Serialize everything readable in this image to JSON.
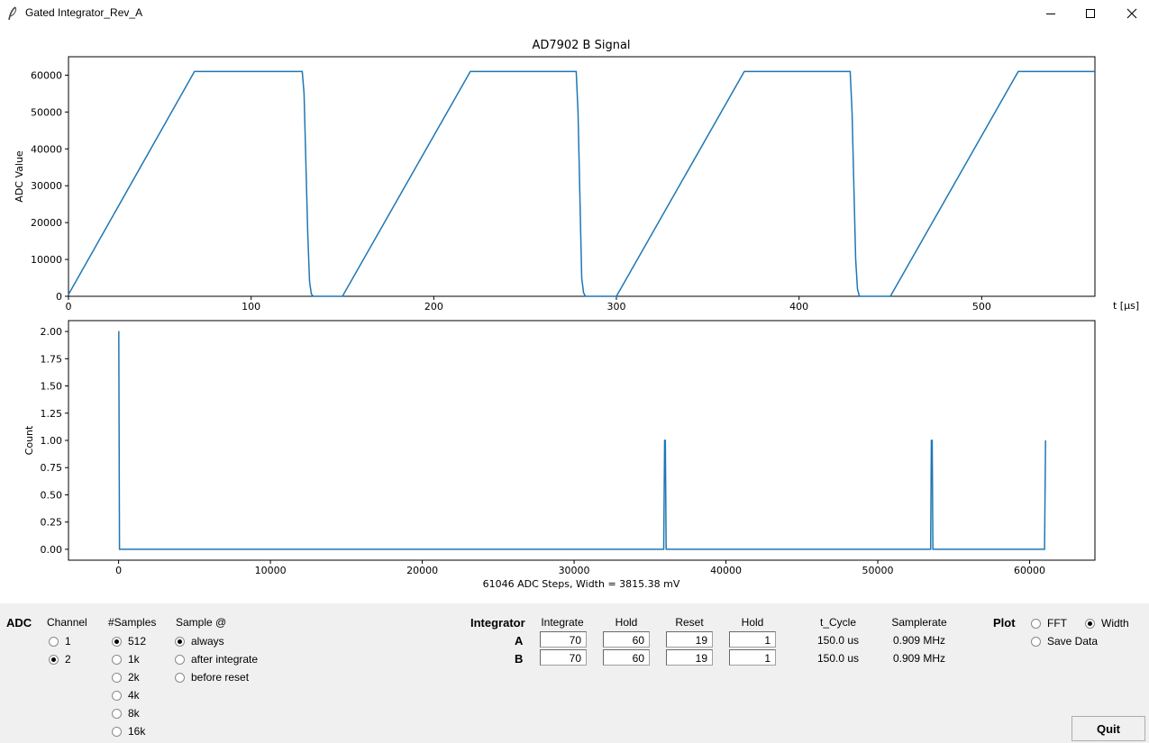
{
  "window": {
    "title": "Gated Integrator_Rev_A"
  },
  "plot1": {
    "title": "AD7902 B Signal",
    "ylabel": "ADC Value",
    "xlabel": "t [μs]",
    "xticks": [
      "0",
      "100",
      "200",
      "300",
      "400",
      "500"
    ],
    "yticks": [
      "0",
      "10000",
      "20000",
      "30000",
      "40000",
      "50000",
      "60000"
    ]
  },
  "plot2": {
    "ylabel": "Count",
    "xlabel": "61046 ADC Steps, Width = 3815.38 mV",
    "xticks": [
      "0",
      "10000",
      "20000",
      "30000",
      "40000",
      "50000",
      "60000"
    ],
    "yticks": [
      "0.00",
      "0.25",
      "0.50",
      "0.75",
      "1.00",
      "1.25",
      "1.50",
      "1.75",
      "2.00"
    ]
  },
  "chart_data": [
    {
      "type": "line",
      "title": "AD7902 B Signal",
      "xlabel": "t [μs]",
      "ylabel": "ADC Value",
      "xlim": [
        0,
        562
      ],
      "ylim": [
        0,
        65000
      ],
      "series": [
        {
          "x": [
            0,
            69,
            128,
            129,
            131,
            132,
            133,
            134,
            150,
            220,
            278,
            279,
            281,
            282,
            283,
            300,
            370,
            428,
            429,
            431,
            432,
            433,
            450,
            520,
            562
          ],
          "y": [
            500,
            61000,
            61000,
            55000,
            17000,
            4000,
            600,
            0,
            0,
            61000,
            61000,
            50000,
            5000,
            1000,
            0,
            0,
            61000,
            61000,
            50000,
            10000,
            2000,
            0,
            0,
            61000,
            61000
          ]
        }
      ]
    },
    {
      "type": "line",
      "xlabel": "61046 ADC Steps, Width = 3815.38 mV",
      "ylabel": "Count",
      "xlim": [
        -3300,
        64300
      ],
      "ylim": [
        -0.1,
        2.1
      ],
      "series": [
        {
          "x": [
            0,
            10,
            60,
            35900,
            35960,
            36010,
            36060,
            53480,
            53530,
            53580,
            53630,
            60980,
            61046
          ],
          "y": [
            2,
            2,
            0,
            0,
            1,
            1,
            0,
            0,
            1,
            1,
            0,
            0,
            1
          ]
        }
      ]
    }
  ],
  "controls": {
    "adc_label": "ADC",
    "channel": {
      "header": "Channel",
      "options": [
        "1",
        "2"
      ],
      "selected": "2"
    },
    "samples": {
      "header": "#Samples",
      "options": [
        "512",
        "1k",
        "2k",
        "4k",
        "8k",
        "16k"
      ],
      "selected": "512"
    },
    "sample_at": {
      "header": "Sample @",
      "options": [
        "always",
        "after integrate",
        "before reset"
      ],
      "selected": "always"
    },
    "integrator": {
      "label": "Integrator",
      "headers": [
        "Integrate",
        "Hold",
        "Reset",
        "Hold",
        "t_Cycle",
        "Samplerate"
      ],
      "rows": [
        {
          "name": "A",
          "integrate": "70",
          "hold1": "60",
          "reset": "19",
          "hold2": "1",
          "t_cycle": "150.0 us",
          "samplerate": "0.909 MHz"
        },
        {
          "name": "B",
          "integrate": "70",
          "hold1": "60",
          "reset": "19",
          "hold2": "1",
          "t_cycle": "150.0 us",
          "samplerate": "0.909 MHz"
        }
      ]
    },
    "plot": {
      "label": "Plot",
      "options": [
        "FFT",
        "Width"
      ],
      "selected": "Width",
      "save_label": "Save Data"
    },
    "quit_label": "Quit"
  },
  "colors": {
    "line": "#1f77b4",
    "panel_bg": "#f0f0f0"
  }
}
